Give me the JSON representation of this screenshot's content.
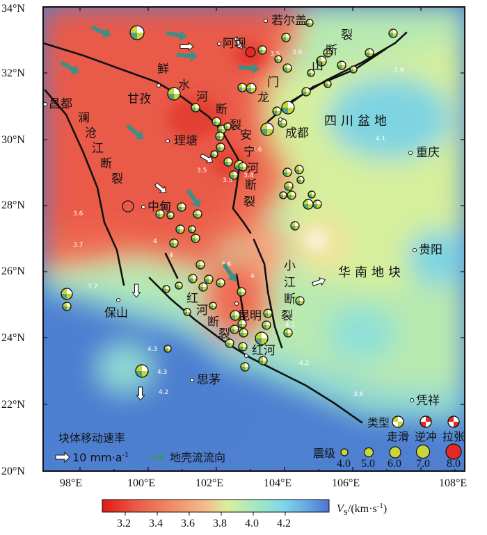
{
  "map": {
    "lon_ticks": [
      "98°E",
      "100°E",
      "102°E",
      "104°E",
      "106°E",
      "108°E"
    ],
    "lat_ticks": [
      "20°N",
      "22°N",
      "24°N",
      "26°N",
      "28°N",
      "30°N",
      "32°N",
      "34°N"
    ],
    "cities": [
      "若尔盖",
      "阿坝",
      "甘孜",
      "昌都",
      "理塘",
      "成都",
      "重庆",
      "中甸",
      "贵阳",
      "保山",
      "昆明",
      "红河",
      "思茅",
      "凭祥"
    ],
    "faults": {
      "xianshuihe": [
        "鲜",
        "水",
        "河",
        "断",
        "裂"
      ],
      "anninghe": [
        "安",
        "宁",
        "河",
        "断",
        "裂"
      ],
      "lancang": [
        "澜",
        "沧",
        "江",
        "断",
        "裂"
      ],
      "longmenshan": [
        "龙",
        "门",
        "山",
        "断",
        "裂"
      ],
      "xiaojiang": [
        "小",
        "江",
        "断",
        "裂"
      ],
      "honghe": [
        "红",
        "河",
        "断",
        "裂"
      ]
    },
    "blocks": {
      "sichuan_basin": "四川盆地",
      "south_china": "华南地块"
    },
    "contour_labels": [
      "3.5",
      "3.6",
      "3.9",
      "4.1",
      "3.6",
      "3.4",
      "3.5",
      "3.5",
      "3.6",
      "3.7",
      "4",
      "4",
      "3.6",
      "4",
      "4.1",
      "4.2",
      "4.3",
      "4.3",
      "4.2",
      "3.7",
      "3.6"
    ]
  },
  "legend": {
    "velocity_title": "块体移动速率",
    "velocity_value": "10 mm·a",
    "velocity_exp": "-1",
    "crust_flow": "地壳流流向",
    "type_title": "类型",
    "types": [
      "走滑",
      "逆冲",
      "拉张"
    ],
    "magnitude_title": "震级",
    "magnitudes": [
      "4.0",
      "5.0",
      "6.0",
      "7.0",
      "8.0"
    ]
  },
  "colorbar": {
    "ticks": [
      "3.2",
      "3.4",
      "3.6",
      "3.8",
      "4.0",
      "4.2"
    ],
    "label_main": "V",
    "label_sub": "S",
    "label_unit": "/(km·s",
    "label_exp": "-1",
    "label_end": ")"
  },
  "colors": {
    "slow": "#ea5a4a",
    "mid": "#c8e39a",
    "fast": "#4e7fd1",
    "flow_arrow": "#3f8f86"
  }
}
